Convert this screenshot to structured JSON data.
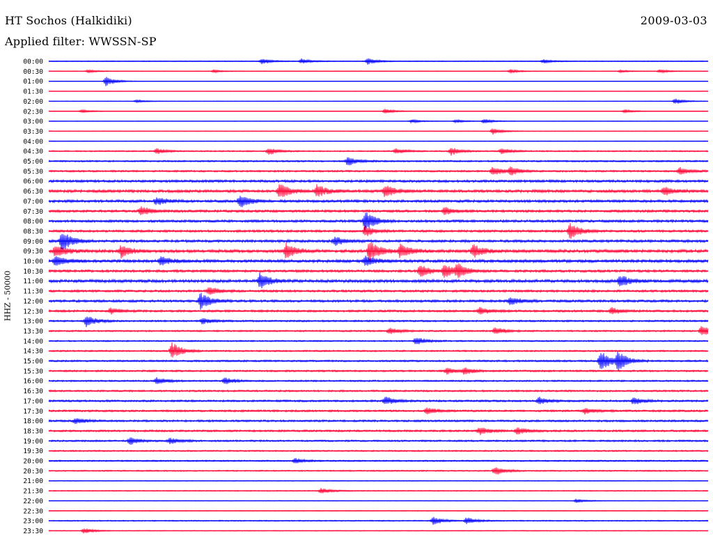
{
  "header": {
    "station": "HT Sochos (Halkidiki)",
    "date": "2009-03-03",
    "filter": "Applied filter: WWSSN-SP",
    "channel": "HHZ - 50000"
  },
  "colors": {
    "trace_a": "#0000ff",
    "trace_b": "#ff0033",
    "text": "#000000",
    "background": "#ffffff"
  },
  "chart_data": {
    "type": "line",
    "title": "HT Sochos (Halkidiki)",
    "subtitle": "Applied filter: WWSSN-SP",
    "ylabel": "HHZ - 50000",
    "grid": false,
    "row_minutes": 30,
    "rows": [
      {
        "time": "00:00",
        "color": "#0000ff",
        "noise": 0.5,
        "events": [
          {
            "minute": 9.7,
            "amp": 1.2
          },
          {
            "minute": 11.5,
            "amp": 1.0
          },
          {
            "minute": 14.5,
            "amp": 1.4
          },
          {
            "minute": 22.5,
            "amp": 0.8
          }
        ]
      },
      {
        "time": "00:30",
        "color": "#ff0033",
        "noise": 0.35,
        "events": [
          {
            "minute": 1.8,
            "amp": 0.7
          },
          {
            "minute": 7.5,
            "amp": 0.6
          },
          {
            "minute": 21.0,
            "amp": 0.8
          },
          {
            "minute": 26.0,
            "amp": 0.5
          },
          {
            "minute": 27.8,
            "amp": 0.8
          }
        ]
      },
      {
        "time": "01:00",
        "color": "#0000ff",
        "noise": 0.3,
        "events": [
          {
            "minute": 2.6,
            "amp": 2.0
          }
        ]
      },
      {
        "time": "01:30",
        "color": "#ff0033",
        "noise": 0.25,
        "events": []
      },
      {
        "time": "02:00",
        "color": "#0000ff",
        "noise": 0.3,
        "events": [
          {
            "minute": 4.0,
            "amp": 0.7
          },
          {
            "minute": 28.5,
            "amp": 1.2
          }
        ]
      },
      {
        "time": "02:30",
        "color": "#ff0033",
        "noise": 0.35,
        "events": [
          {
            "minute": 1.5,
            "amp": 0.6
          },
          {
            "minute": 15.3,
            "amp": 1.0
          },
          {
            "minute": 26.2,
            "amp": 0.7
          }
        ]
      },
      {
        "time": "03:00",
        "color": "#0000ff",
        "noise": 0.3,
        "events": [
          {
            "minute": 16.5,
            "amp": 0.8
          },
          {
            "minute": 18.5,
            "amp": 0.7
          },
          {
            "minute": 19.8,
            "amp": 1.0
          }
        ]
      },
      {
        "time": "03:30",
        "color": "#ff0033",
        "noise": 0.35,
        "events": [
          {
            "minute": 20.2,
            "amp": 1.3
          }
        ]
      },
      {
        "time": "04:00",
        "color": "#0000ff",
        "noise": 0.4,
        "events": []
      },
      {
        "time": "04:30",
        "color": "#ff0033",
        "noise": 0.8,
        "events": [
          {
            "minute": 4.9,
            "amp": 1.2
          },
          {
            "minute": 10.0,
            "amp": 1.4
          },
          {
            "minute": 15.8,
            "amp": 1.2
          },
          {
            "minute": 18.3,
            "amp": 1.6
          },
          {
            "minute": 20.6,
            "amp": 1.2
          }
        ]
      },
      {
        "time": "05:00",
        "color": "#0000ff",
        "noise": 1.0,
        "events": [
          {
            "minute": 13.6,
            "amp": 1.8
          }
        ]
      },
      {
        "time": "05:30",
        "color": "#ff0033",
        "noise": 1.1,
        "events": [
          {
            "minute": 20.2,
            "amp": 1.8
          },
          {
            "minute": 21.0,
            "amp": 1.6
          },
          {
            "minute": 28.7,
            "amp": 1.4
          }
        ]
      },
      {
        "time": "06:00",
        "color": "#0000ff",
        "noise": 1.5,
        "events": []
      },
      {
        "time": "06:30",
        "color": "#ff0033",
        "noise": 1.7,
        "events": [
          {
            "minute": 10.5,
            "amp": 3.0
          },
          {
            "minute": 12.2,
            "amp": 2.5
          },
          {
            "minute": 15.3,
            "amp": 2.5
          },
          {
            "minute": 28.0,
            "amp": 1.8
          }
        ]
      },
      {
        "time": "07:00",
        "color": "#0000ff",
        "noise": 1.6,
        "events": [
          {
            "minute": 4.9,
            "amp": 1.6
          },
          {
            "minute": 8.7,
            "amp": 2.5
          }
        ]
      },
      {
        "time": "07:30",
        "color": "#ff0033",
        "noise": 1.5,
        "events": [
          {
            "minute": 4.2,
            "amp": 1.8
          },
          {
            "minute": 18.0,
            "amp": 1.4
          }
        ]
      },
      {
        "time": "08:00",
        "color": "#0000ff",
        "noise": 1.5,
        "events": [
          {
            "minute": 14.4,
            "amp": 4.0
          }
        ]
      },
      {
        "time": "08:30",
        "color": "#ff0033",
        "noise": 1.4,
        "events": [
          {
            "minute": 14.4,
            "amp": 2.0
          },
          {
            "minute": 23.7,
            "amp": 3.2
          }
        ]
      },
      {
        "time": "09:00",
        "color": "#0000ff",
        "noise": 1.6,
        "events": [
          {
            "minute": 0.6,
            "amp": 4.0
          },
          {
            "minute": 13.0,
            "amp": 1.8
          }
        ]
      },
      {
        "time": "09:30",
        "color": "#ff0033",
        "noise": 1.9,
        "events": [
          {
            "minute": 0.3,
            "amp": 2.5
          },
          {
            "minute": 3.3,
            "amp": 2.5
          },
          {
            "minute": 10.8,
            "amp": 3.0
          },
          {
            "minute": 14.6,
            "amp": 4.5
          },
          {
            "minute": 16.0,
            "amp": 3.0
          },
          {
            "minute": 19.3,
            "amp": 2.5
          }
        ]
      },
      {
        "time": "10:00",
        "color": "#0000ff",
        "noise": 1.8,
        "events": [
          {
            "minute": 0.3,
            "amp": 2.2
          },
          {
            "minute": 5.1,
            "amp": 1.8
          },
          {
            "minute": 14.4,
            "amp": 2.0
          }
        ]
      },
      {
        "time": "10:30",
        "color": "#ff0033",
        "noise": 1.5,
        "events": [
          {
            "minute": 16.9,
            "amp": 2.5
          },
          {
            "minute": 18.0,
            "amp": 2.8
          },
          {
            "minute": 18.6,
            "amp": 2.5
          }
        ]
      },
      {
        "time": "11:00",
        "color": "#0000ff",
        "noise": 1.8,
        "events": [
          {
            "minute": 9.6,
            "amp": 3.2
          },
          {
            "minute": 26.0,
            "amp": 2.4
          }
        ]
      },
      {
        "time": "11:30",
        "color": "#ff0033",
        "noise": 1.4,
        "events": [
          {
            "minute": 7.3,
            "amp": 1.6
          }
        ]
      },
      {
        "time": "12:00",
        "color": "#0000ff",
        "noise": 1.5,
        "events": [
          {
            "minute": 6.9,
            "amp": 3.4
          },
          {
            "minute": 21.0,
            "amp": 1.6
          }
        ]
      },
      {
        "time": "12:30",
        "color": "#ff0033",
        "noise": 1.3,
        "events": [
          {
            "minute": 2.8,
            "amp": 1.2
          },
          {
            "minute": 19.6,
            "amp": 1.4
          },
          {
            "minute": 25.6,
            "amp": 1.4
          }
        ]
      },
      {
        "time": "13:00",
        "color": "#0000ff",
        "noise": 1.1,
        "events": [
          {
            "minute": 1.7,
            "amp": 2.4
          },
          {
            "minute": 7.0,
            "amp": 1.2
          }
        ]
      },
      {
        "time": "13:30",
        "color": "#ff0033",
        "noise": 1.0,
        "events": [
          {
            "minute": 15.5,
            "amp": 1.4
          },
          {
            "minute": 20.3,
            "amp": 1.6
          },
          {
            "minute": 29.7,
            "amp": 2.2
          }
        ]
      },
      {
        "time": "14:00",
        "color": "#0000ff",
        "noise": 0.9,
        "events": [
          {
            "minute": 16.7,
            "amp": 1.6
          }
        ]
      },
      {
        "time": "14:30",
        "color": "#ff0033",
        "noise": 1.0,
        "events": [
          {
            "minute": 5.6,
            "amp": 3.4
          }
        ]
      },
      {
        "time": "15:00",
        "color": "#0000ff",
        "noise": 1.1,
        "events": [
          {
            "minute": 25.1,
            "amp": 4.5
          },
          {
            "minute": 25.9,
            "amp": 3.8
          }
        ]
      },
      {
        "time": "15:30",
        "color": "#ff0033",
        "noise": 1.1,
        "events": [
          {
            "minute": 18.1,
            "amp": 1.4
          },
          {
            "minute": 18.9,
            "amp": 1.2
          }
        ]
      },
      {
        "time": "16:00",
        "color": "#0000ff",
        "noise": 1.0,
        "events": [
          {
            "minute": 4.9,
            "amp": 1.4
          },
          {
            "minute": 8.0,
            "amp": 1.4
          }
        ]
      },
      {
        "time": "16:30",
        "color": "#ff0033",
        "noise": 1.1,
        "events": []
      },
      {
        "time": "17:00",
        "color": "#0000ff",
        "noise": 1.2,
        "events": [
          {
            "minute": 15.3,
            "amp": 1.8
          },
          {
            "minute": 22.3,
            "amp": 1.4
          },
          {
            "minute": 26.6,
            "amp": 1.4
          }
        ]
      },
      {
        "time": "17:30",
        "color": "#ff0033",
        "noise": 1.2,
        "events": [
          {
            "minute": 17.2,
            "amp": 1.4
          },
          {
            "minute": 24.4,
            "amp": 1.2
          }
        ]
      },
      {
        "time": "18:00",
        "color": "#0000ff",
        "noise": 1.2,
        "events": [
          {
            "minute": 1.2,
            "amp": 1.2
          }
        ]
      },
      {
        "time": "18:30",
        "color": "#ff0033",
        "noise": 1.2,
        "events": [
          {
            "minute": 19.6,
            "amp": 1.6
          },
          {
            "minute": 21.3,
            "amp": 1.6
          }
        ]
      },
      {
        "time": "19:00",
        "color": "#0000ff",
        "noise": 1.1,
        "events": [
          {
            "minute": 3.7,
            "amp": 1.4
          },
          {
            "minute": 5.5,
            "amp": 1.2
          }
        ]
      },
      {
        "time": "19:30",
        "color": "#ff0033",
        "noise": 0.9,
        "events": []
      },
      {
        "time": "20:00",
        "color": "#0000ff",
        "noise": 0.9,
        "events": [
          {
            "minute": 11.2,
            "amp": 1.0
          }
        ]
      },
      {
        "time": "20:30",
        "color": "#ff0033",
        "noise": 0.8,
        "events": [
          {
            "minute": 20.3,
            "amp": 1.8
          }
        ]
      },
      {
        "time": "21:00",
        "color": "#0000ff",
        "noise": 0.5,
        "events": []
      },
      {
        "time": "21:30",
        "color": "#ff0033",
        "noise": 0.6,
        "events": [
          {
            "minute": 12.4,
            "amp": 1.2
          }
        ]
      },
      {
        "time": "22:00",
        "color": "#0000ff",
        "noise": 0.4,
        "events": [
          {
            "minute": 24.0,
            "amp": 0.8
          }
        ]
      },
      {
        "time": "22:30",
        "color": "#ff0033",
        "noise": 0.5,
        "events": []
      },
      {
        "time": "23:00",
        "color": "#0000ff",
        "noise": 0.7,
        "events": [
          {
            "minute": 17.5,
            "amp": 1.6
          },
          {
            "minute": 19.0,
            "amp": 1.4
          }
        ]
      },
      {
        "time": "23:30",
        "color": "#ff0033",
        "noise": 0.5,
        "events": [
          {
            "minute": 1.6,
            "amp": 1.2
          }
        ]
      }
    ]
  }
}
